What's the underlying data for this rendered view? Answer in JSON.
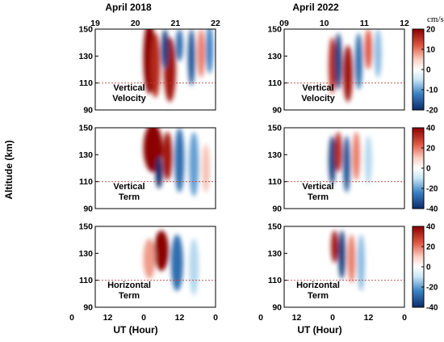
{
  "figure": {
    "column_titles": [
      "April 2018",
      "April 2022"
    ],
    "ylabel": "Altitude (km)",
    "xlabel": "UT (Hour)",
    "colorbar_unit": "cm/s"
  },
  "colors": {
    "max_red": "#8b0000",
    "mid_red": "#e0553f",
    "light_red": "#fbd0c4",
    "zero": "#ffffff",
    "light_blue": "#c9e6f5",
    "mid_blue": "#3a82c4",
    "max_blue": "#0c2c6b",
    "reference_line": "#c04040",
    "contour": "#333333"
  },
  "chart_data": [
    {
      "type": "heatmap",
      "label": [
        "Vertical",
        "Velocity"
      ],
      "period": "April 2018",
      "ylim": [
        90,
        150
      ],
      "yticks": [
        90,
        110,
        130,
        150
      ],
      "top_ticks": [
        "19",
        "20",
        "21",
        "22"
      ],
      "reference_altitude_km": 110,
      "colorbar": {
        "min": -20,
        "max": 20,
        "ticks": [
          -20,
          -10,
          0,
          10,
          20
        ]
      },
      "cells": [
        {
          "x": 0.45,
          "y": 0.35,
          "sx": 0.05,
          "sy": 0.45,
          "v": 1.0
        },
        {
          "x": 0.5,
          "y": 0.45,
          "sx": 0.04,
          "sy": 0.4,
          "v": 0.8
        },
        {
          "x": 0.62,
          "y": 0.5,
          "sx": 0.05,
          "sy": 0.4,
          "v": 0.9
        },
        {
          "x": 0.58,
          "y": 0.25,
          "sx": 0.03,
          "sy": 0.25,
          "v": -0.9
        },
        {
          "x": 0.7,
          "y": 0.2,
          "sx": 0.03,
          "sy": 0.2,
          "v": -0.7
        },
        {
          "x": 0.8,
          "y": 0.35,
          "sx": 0.03,
          "sy": 0.35,
          "v": -0.8
        },
        {
          "x": 0.88,
          "y": 0.3,
          "sx": 0.03,
          "sy": 0.3,
          "v": 0.5
        },
        {
          "x": 0.95,
          "y": 0.25,
          "sx": 0.03,
          "sy": 0.3,
          "v": -0.6
        }
      ]
    },
    {
      "type": "heatmap",
      "label": [
        "Vertical",
        "Velocity"
      ],
      "period": "April 2022",
      "ylim": [
        90,
        150
      ],
      "yticks": [
        90,
        110,
        130,
        150
      ],
      "top_ticks": [
        "09",
        "10",
        "11",
        "12"
      ],
      "reference_altitude_km": 110,
      "colorbar": {
        "min": -20,
        "max": 20,
        "ticks": [
          -20,
          -10,
          0,
          10,
          20
        ]
      },
      "cells": [
        {
          "x": 0.4,
          "y": 0.45,
          "sx": 0.03,
          "sy": 0.35,
          "v": 0.8
        },
        {
          "x": 0.45,
          "y": 0.4,
          "sx": 0.03,
          "sy": 0.35,
          "v": -0.9
        },
        {
          "x": 0.53,
          "y": 0.55,
          "sx": 0.04,
          "sy": 0.35,
          "v": 0.9
        },
        {
          "x": 0.62,
          "y": 0.4,
          "sx": 0.03,
          "sy": 0.35,
          "v": -0.7
        },
        {
          "x": 0.7,
          "y": 0.25,
          "sx": 0.03,
          "sy": 0.25,
          "v": 0.6
        },
        {
          "x": 0.78,
          "y": 0.3,
          "sx": 0.03,
          "sy": 0.3,
          "v": -0.4
        }
      ]
    },
    {
      "type": "heatmap",
      "label": [
        "Vertical",
        "Term"
      ],
      "period": "April 2018",
      "ylim": [
        90,
        150
      ],
      "yticks": [
        90,
        110,
        130,
        150
      ],
      "reference_altitude_km": 110,
      "colorbar": {
        "min": -40,
        "max": 40,
        "ticks": [
          -40,
          -20,
          0,
          20,
          40
        ]
      },
      "cells": [
        {
          "x": 0.48,
          "y": 0.25,
          "sx": 0.08,
          "sy": 0.3,
          "v": 1.0
        },
        {
          "x": 0.6,
          "y": 0.35,
          "sx": 0.04,
          "sy": 0.3,
          "v": 0.9
        },
        {
          "x": 0.53,
          "y": 0.55,
          "sx": 0.03,
          "sy": 0.2,
          "v": -1.0
        },
        {
          "x": 0.7,
          "y": 0.4,
          "sx": 0.04,
          "sy": 0.4,
          "v": -0.7
        },
        {
          "x": 0.82,
          "y": 0.45,
          "sx": 0.04,
          "sy": 0.4,
          "v": -0.5
        },
        {
          "x": 0.92,
          "y": 0.5,
          "sx": 0.03,
          "sy": 0.3,
          "v": 0.3
        }
      ]
    },
    {
      "type": "heatmap",
      "label": [
        "Vertical",
        "Term"
      ],
      "period": "April 2022",
      "ylim": [
        90,
        150
      ],
      "yticks": [
        90,
        110,
        130,
        150
      ],
      "reference_altitude_km": 110,
      "colorbar": {
        "min": -40,
        "max": 40,
        "ticks": [
          -40,
          -20,
          0,
          20,
          40
        ]
      },
      "cells": [
        {
          "x": 0.4,
          "y": 0.4,
          "sx": 0.03,
          "sy": 0.3,
          "v": -0.9
        },
        {
          "x": 0.45,
          "y": 0.3,
          "sx": 0.03,
          "sy": 0.25,
          "v": 0.8
        },
        {
          "x": 0.52,
          "y": 0.45,
          "sx": 0.03,
          "sy": 0.35,
          "v": -0.8
        },
        {
          "x": 0.6,
          "y": 0.35,
          "sx": 0.03,
          "sy": 0.3,
          "v": 0.5
        },
        {
          "x": 0.7,
          "y": 0.4,
          "sx": 0.03,
          "sy": 0.3,
          "v": -0.3
        }
      ]
    },
    {
      "type": "heatmap",
      "label": [
        "Horizontal",
        "Term"
      ],
      "period": "April 2018",
      "ylim": [
        90,
        150
      ],
      "yticks": [
        90,
        110,
        130,
        150
      ],
      "reference_altitude_km": 110,
      "colorbar": {
        "min": -40,
        "max": 40,
        "ticks": [
          -40,
          -20,
          0,
          20,
          40
        ]
      },
      "cells": [
        {
          "x": 0.55,
          "y": 0.3,
          "sx": 0.06,
          "sy": 0.25,
          "v": 1.0
        },
        {
          "x": 0.45,
          "y": 0.4,
          "sx": 0.05,
          "sy": 0.25,
          "v": 0.4
        },
        {
          "x": 0.68,
          "y": 0.45,
          "sx": 0.05,
          "sy": 0.35,
          "v": -0.7
        },
        {
          "x": 0.82,
          "y": 0.5,
          "sx": 0.04,
          "sy": 0.35,
          "v": -0.3
        }
      ]
    },
    {
      "type": "heatmap",
      "label": [
        "Horizontal",
        "Term"
      ],
      "period": "April 2022",
      "ylim": [
        90,
        150
      ],
      "yticks": [
        90,
        110,
        130,
        150
      ],
      "reference_altitude_km": 110,
      "colorbar": {
        "min": -40,
        "max": 40,
        "ticks": [
          -40,
          -20,
          0,
          20,
          40
        ]
      },
      "cells": [
        {
          "x": 0.42,
          "y": 0.25,
          "sx": 0.03,
          "sy": 0.2,
          "v": 0.9
        },
        {
          "x": 0.48,
          "y": 0.35,
          "sx": 0.03,
          "sy": 0.3,
          "v": -0.9
        },
        {
          "x": 0.56,
          "y": 0.4,
          "sx": 0.03,
          "sy": 0.3,
          "v": 0.5
        },
        {
          "x": 0.64,
          "y": 0.45,
          "sx": 0.03,
          "sy": 0.35,
          "v": -0.4
        }
      ]
    }
  ],
  "xaxis": {
    "bottom_ticks_left": [
      "0",
      "12",
      "0",
      "12",
      "0"
    ],
    "bottom_ticks_right": [
      "0",
      "12",
      "0",
      "12",
      "0"
    ]
  }
}
